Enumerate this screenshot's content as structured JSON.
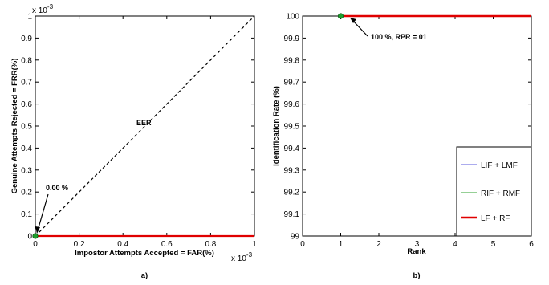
{
  "chart_data": [
    {
      "panel": "a)",
      "type": "line",
      "xlabel": "Impostor Attempts Accepted = FAR(%)",
      "ylabel": "Genuine Attempts Rejected = FRR(%)",
      "x_multiplier": "x 10",
      "y_multiplier": "x 10",
      "exponent": "-3",
      "xlim": [
        0,
        1
      ],
      "ylim": [
        0,
        1
      ],
      "xticks": [
        0,
        0.2,
        0.4,
        0.6,
        0.8,
        1
      ],
      "xtick_labels": [
        "0",
        "0.2",
        "0.4",
        "0.6",
        "0.8",
        "1"
      ],
      "yticks": [
        0,
        0.1,
        0.2,
        0.3,
        0.4,
        0.5,
        0.6,
        0.7,
        0.8,
        0.9,
        1
      ],
      "ytick_labels": [
        "0",
        "0.1",
        "0.2",
        "0.3",
        "0.4",
        "0.5",
        "0.6",
        "0.7",
        "0.8",
        "0.9",
        "1"
      ],
      "series": [
        {
          "style": "dashed",
          "color": "#000000",
          "x": [
            0,
            1
          ],
          "y": [
            0,
            1
          ]
        },
        {
          "style": "solid",
          "color": "#e00000",
          "x": [
            0,
            1
          ],
          "y": [
            0,
            0
          ]
        }
      ],
      "marker": {
        "x": 0,
        "y": 0,
        "color": "#1f9e2d"
      },
      "annotations": [
        {
          "text": "EER",
          "x": 0.5,
          "y": 0.5
        },
        {
          "text": "0.00 %",
          "x": 0.02,
          "y": 0.14
        }
      ],
      "grid": false
    },
    {
      "panel": "b)",
      "type": "line",
      "xlabel": "Rank",
      "ylabel": "Identification Rate (%)",
      "xlim": [
        0,
        6
      ],
      "ylim": [
        99,
        100
      ],
      "xticks": [
        0,
        1,
        2,
        3,
        4,
        5,
        6
      ],
      "xtick_labels": [
        "0",
        "1",
        "2",
        "3",
        "4",
        "5",
        "6"
      ],
      "yticks": [
        99,
        99.1,
        99.2,
        99.3,
        99.4,
        99.5,
        99.6,
        99.7,
        99.8,
        99.9,
        100
      ],
      "ytick_labels": [
        "99",
        "99.1",
        "99.2",
        "99.3",
        "99.4",
        "99.5",
        "99.6",
        "99.7",
        "99.8",
        "99.9",
        "100"
      ],
      "series": [
        {
          "name": "LIF + LMF",
          "color": "#5a5adc",
          "width": 1,
          "x": [
            1,
            6
          ],
          "y": [
            100,
            100
          ]
        },
        {
          "name": "RIF + RMF",
          "color": "#2ea02e",
          "width": 1,
          "x": [
            1,
            6
          ],
          "y": [
            100,
            100
          ]
        },
        {
          "name": "LF + RF",
          "color": "#e00000",
          "width": 2.5,
          "x": [
            1,
            6
          ],
          "y": [
            100,
            100
          ]
        }
      ],
      "marker": {
        "x": 1,
        "y": 100,
        "color": "#1f9e2d"
      },
      "annotations": [
        {
          "text": "100 %, RPR = 01",
          "x": 1.4,
          "y": 99.97
        }
      ],
      "legend_position": "bottom-right",
      "grid": false
    }
  ]
}
